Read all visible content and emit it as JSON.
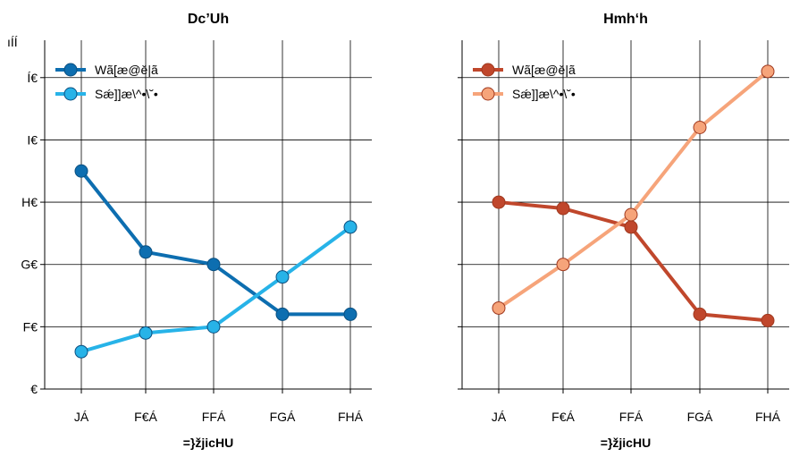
{
  "chart_data": [
    {
      "type": "line",
      "title": "Dc’Uh",
      "xlabel": "=}žjicHU",
      "ylabel": "",
      "ylim_label": "ıÍÍ",
      "categories": [
        "JÁ",
        "F€Á",
        "FFÁ",
        "FGÁ",
        "FHÁ"
      ],
      "yticks": [
        {
          "value": 0,
          "label": "€"
        },
        {
          "value": 10,
          "label": "F€"
        },
        {
          "value": 20,
          "label": "G€"
        },
        {
          "value": 30,
          "label": "H€"
        },
        {
          "value": 40,
          "label": "I€"
        },
        {
          "value": 50,
          "label": "Í€"
        }
      ],
      "ylim": [
        0,
        56
      ],
      "grid": true,
      "legend_position": "top-left",
      "series": [
        {
          "name": "Wã[æ@ě|ã",
          "color": "#0d6eb0",
          "values": [
            35,
            22,
            20,
            12,
            12
          ]
        },
        {
          "name": "Sǽ]]æ\\^•\\˘•",
          "color": "#27b3e8",
          "values": [
            6,
            9,
            10,
            18,
            26
          ]
        }
      ]
    },
    {
      "type": "line",
      "title": "Hmh‘h",
      "xlabel": "=}žjicHU",
      "ylabel": "",
      "categories": [
        "JÁ",
        "F€Á",
        "FFÁ",
        "FGÁ",
        "FHÁ"
      ],
      "ylim": [
        0,
        56
      ],
      "grid": true,
      "legend_position": "top-left",
      "series": [
        {
          "name": "Wã[æ@ě|ã",
          "color": "#c0472c",
          "values": [
            30,
            29,
            26,
            12,
            11
          ]
        },
        {
          "name": "Sǽ]]æ\\^•\\˘•",
          "color": "#f6a47a",
          "values": [
            13,
            20,
            28,
            42,
            51
          ]
        }
      ]
    }
  ]
}
